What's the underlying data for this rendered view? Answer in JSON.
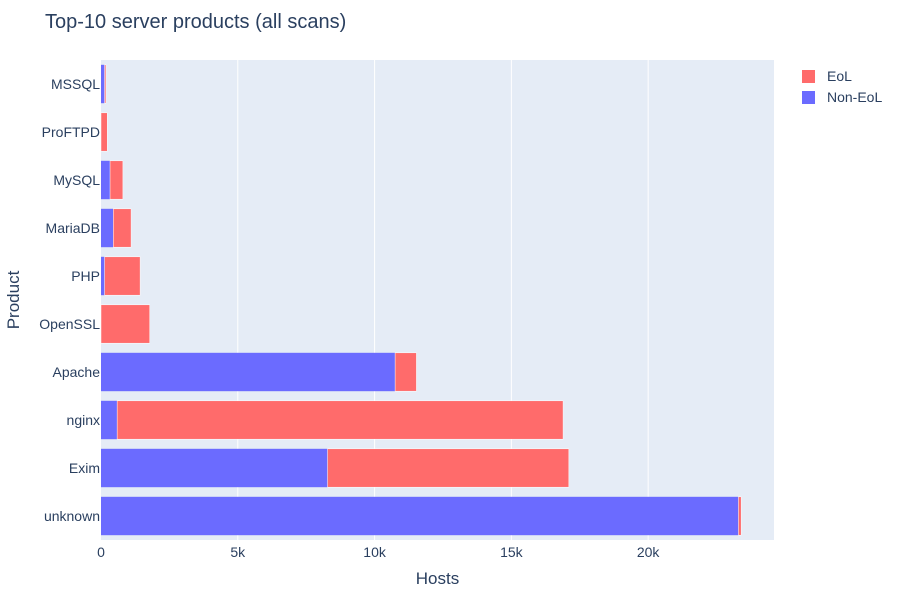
{
  "chart_data": {
    "type": "bar",
    "orientation": "horizontal",
    "barmode": "stack",
    "title": "Top-10 server products (all scans)",
    "xlabel": "Hosts",
    "ylabel": "Product",
    "xlim": [
      0,
      24600
    ],
    "x_ticks": [
      0,
      5000,
      10000,
      15000,
      20000
    ],
    "x_tick_labels": [
      "0",
      "5k",
      "10k",
      "15k",
      "20k"
    ],
    "categories": [
      "MSSQL",
      "ProFTPD",
      "MySQL",
      "MariaDB",
      "PHP",
      "OpenSSL",
      "Apache",
      "nginx",
      "Exim",
      "unknown"
    ],
    "series": [
      {
        "name": "Non-EoL",
        "color": "#636efa",
        "values": [
          130,
          0,
          330,
          450,
          130,
          0,
          10750,
          590,
          8280,
          23300
        ]
      },
      {
        "name": "EoL",
        "color": "#ef553b",
        "values": [
          50,
          230,
          470,
          650,
          1300,
          1780,
          780,
          16300,
          8820,
          100
        ]
      }
    ],
    "legend": {
      "position": "top-right",
      "order": [
        "EoL",
        "Non-EoL"
      ]
    },
    "grid": true,
    "background": "#e5ecf6"
  }
}
